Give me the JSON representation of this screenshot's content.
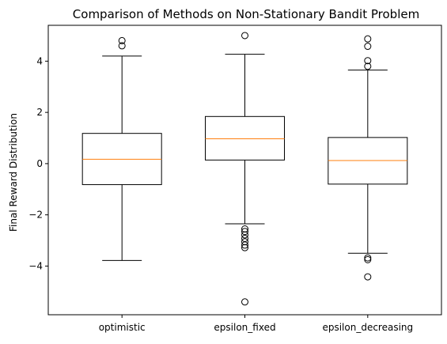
{
  "chart_data": {
    "type": "boxplot",
    "title": "Comparison of Methods on Non-Stationary Bandit Problem",
    "xlabel": "",
    "ylabel": "Final Reward Distribution",
    "ylim": [
      -5.9,
      5.4
    ],
    "yticks": [
      4,
      2,
      0,
      -2,
      -4
    ],
    "ytick_labels": [
      "4",
      "2",
      "0",
      "−2",
      "−4"
    ],
    "categories": [
      "optimistic",
      "epsilon_fixed",
      "epsilon_decreasing"
    ],
    "boxes": [
      {
        "category": "optimistic",
        "whisker_low": -3.78,
        "q1": -0.82,
        "median": 0.17,
        "q3": 1.18,
        "whisker_high": 4.2,
        "outliers": [
          4.6,
          4.8
        ]
      },
      {
        "category": "epsilon_fixed",
        "whisker_low": -2.35,
        "q1": 0.14,
        "median": 0.97,
        "q3": 1.84,
        "whisker_high": 4.27,
        "outliers": [
          5.0,
          -2.55,
          -2.65,
          -2.78,
          -2.92,
          -3.05,
          -3.18,
          -3.28,
          -5.4
        ]
      },
      {
        "category": "epsilon_decreasing",
        "whisker_low": -3.5,
        "q1": -0.8,
        "median": 0.12,
        "q3": 1.02,
        "whisker_high": 3.65,
        "outliers": [
          3.8,
          4.02,
          4.58,
          4.87,
          -3.68,
          -3.75,
          -4.42
        ]
      }
    ],
    "colors": {
      "median": "#ff7f0e",
      "box": "#000000"
    },
    "grid": false,
    "legend": "none"
  }
}
